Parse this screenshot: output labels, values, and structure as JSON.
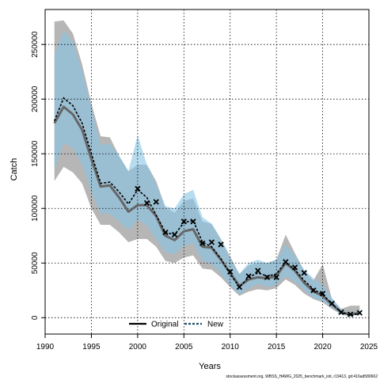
{
  "chart_data": {
    "type": "line",
    "xlabel": "Years",
    "ylabel": "Catch",
    "xlim": [
      1990,
      2025
    ],
    "ylim": [
      -15000,
      282000
    ],
    "xticks": [
      1990,
      1995,
      2000,
      2005,
      2010,
      2015,
      2020,
      2025
    ],
    "yticks": [
      0,
      50000,
      100000,
      150000,
      200000,
      250000
    ],
    "ytick_labels": [
      "0",
      "50000",
      "100000",
      "150000",
      "200000",
      "250000"
    ],
    "grid": true,
    "legend_position": "bottom-center",
    "x": [
      1991,
      1992,
      1993,
      1994,
      1995,
      1996,
      1997,
      1998,
      1999,
      2000,
      2001,
      2002,
      2003,
      2004,
      2005,
      2006,
      2007,
      2008,
      2009,
      2010,
      2011,
      2012,
      2013,
      2014,
      2015,
      2016,
      2017,
      2018,
      2019,
      2020,
      2021,
      2022,
      2023,
      2024
    ],
    "series": [
      {
        "name": "Original",
        "color": "#666666",
        "band_color": "#a9a9a9",
        "values": [
          178000,
          193000,
          186000,
          172000,
          145000,
          120000,
          121000,
          110000,
          97000,
          103000,
          103000,
          93000,
          75000,
          71000,
          79000,
          81000,
          65000,
          64000,
          53000,
          41000,
          29000,
          35000,
          37000,
          36000,
          38000,
          50000,
          43000,
          32000,
          24000,
          20000,
          12000,
          5000,
          3000,
          4500
        ],
        "lower": [
          125000,
          138000,
          133000,
          123000,
          100000,
          85000,
          85000,
          78000,
          69000,
          72000,
          72000,
          65000,
          52000,
          50000,
          55000,
          57000,
          45000,
          44000,
          37000,
          28000,
          20000,
          24000,
          26000,
          25000,
          27000,
          35000,
          30000,
          22000,
          17000,
          14000,
          8000,
          3000,
          2000,
          3000
        ],
        "upper": [
          271000,
          272000,
          260000,
          232000,
          196000,
          166000,
          165000,
          148000,
          134000,
          140000,
          140000,
          125000,
          101000,
          96000,
          107000,
          109000,
          88000,
          86000,
          72000,
          56000,
          40000,
          48000,
          50000,
          50000,
          53000,
          76000,
          59000,
          43000,
          34000,
          49000,
          17000,
          8000,
          11000,
          11000
        ]
      },
      {
        "name": "New",
        "color": "#1f4e6b",
        "band_color": "#87c4e6",
        "values": [
          180000,
          201000,
          194000,
          178000,
          150000,
          123000,
          124000,
          115000,
          104000,
          117000,
          110000,
          94000,
          78000,
          76000,
          87000,
          89000,
          69000,
          65000,
          54000,
          40000,
          28000,
          37000,
          41000,
          38000,
          40000,
          51000,
          44000,
          34000,
          26000,
          21000,
          13000,
          5000,
          2000,
          4000
        ],
        "lower": [
          135000,
          160000,
          155000,
          140000,
          115000,
          95000,
          95000,
          88000,
          80000,
          90000,
          84000,
          72000,
          60000,
          58000,
          66000,
          68000,
          52000,
          49000,
          40000,
          30000,
          21000,
          27000,
          31000,
          28000,
          30000,
          38000,
          33000,
          25000,
          18000,
          15000,
          9000,
          3000,
          1000,
          3000
        ],
        "upper": [
          240000,
          263000,
          252000,
          226000,
          192000,
          158000,
          159000,
          148000,
          134000,
          167000,
          140000,
          122000,
          102000,
          100000,
          113000,
          117000,
          92000,
          86000,
          72000,
          55000,
          40000,
          50000,
          53000,
          50000,
          53000,
          67000,
          57000,
          44000,
          36000,
          30000,
          18000,
          8000,
          4000,
          7000
        ]
      }
    ],
    "observations": {
      "marker": "x",
      "x": [
        2000,
        2001,
        2002,
        2003,
        2004,
        2005,
        2006,
        2007,
        2008,
        2009,
        2010,
        2011,
        2012,
        2013,
        2014,
        2015,
        2016,
        2017,
        2018,
        2019,
        2020,
        2021,
        2022,
        2023,
        2024
      ],
      "values": [
        118000,
        105000,
        106000,
        78000,
        76000,
        88000,
        88000,
        68000,
        69000,
        67000,
        42000,
        28000,
        38000,
        43000,
        37000,
        37000,
        51000,
        46000,
        41000,
        25000,
        22000,
        13000,
        5000,
        3000,
        4500
      ]
    },
    "footnote": "stockassessment.org, WBSS_HAWG_2025_benchmark_init, r19413, git:416ad580662"
  }
}
